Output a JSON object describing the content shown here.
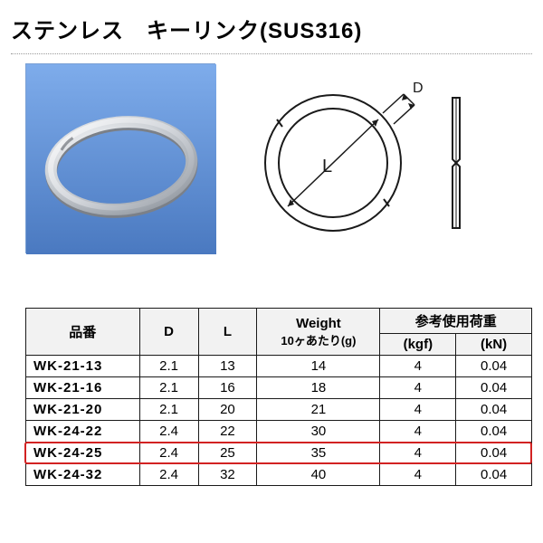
{
  "title": "ステンレス　キーリンク(SUS316)",
  "diagram": {
    "label_D": "D",
    "label_L": "L"
  },
  "table": {
    "headers": {
      "model": "品番",
      "D": "D",
      "L": "L",
      "weight_top": "Weight",
      "weight_sub": "10ヶあたり(g)",
      "load_group": "参考使用荷重",
      "kgf": "(kgf)",
      "kN": "(kN)"
    },
    "highlight_index": 4,
    "col_widths": {
      "model": 120,
      "D": 62,
      "L": 62,
      "weight": 130,
      "kgf": 80,
      "kN": 80
    },
    "rows": [
      {
        "model": "WK-21-13",
        "D": "2.1",
        "L": "13",
        "weight": "14",
        "kgf": "4",
        "kN": "0.04"
      },
      {
        "model": "WK-21-16",
        "D": "2.1",
        "L": "16",
        "weight": "18",
        "kgf": "4",
        "kN": "0.04"
      },
      {
        "model": "WK-21-20",
        "D": "2.1",
        "L": "20",
        "weight": "21",
        "kgf": "4",
        "kN": "0.04"
      },
      {
        "model": "WK-24-22",
        "D": "2.4",
        "L": "22",
        "weight": "30",
        "kgf": "4",
        "kN": "0.04"
      },
      {
        "model": "WK-24-25",
        "D": "2.4",
        "L": "25",
        "weight": "35",
        "kgf": "4",
        "kN": "0.04"
      },
      {
        "model": "WK-24-32",
        "D": "2.4",
        "L": "32",
        "weight": "40",
        "kgf": "4",
        "kN": "0.04"
      }
    ]
  },
  "colors": {
    "photo_border": "#7aa0d4",
    "photo_bg_top": "#6fa0e0",
    "photo_bg_bot": "#4a79c0",
    "ring_light": "#e8e8ea",
    "ring_dark": "#aeb2b8",
    "diagram_stroke": "#1a1a1a",
    "table_border": "#1a1a1a",
    "header_bg": "#f2f2f2",
    "highlight": "#d22222"
  }
}
